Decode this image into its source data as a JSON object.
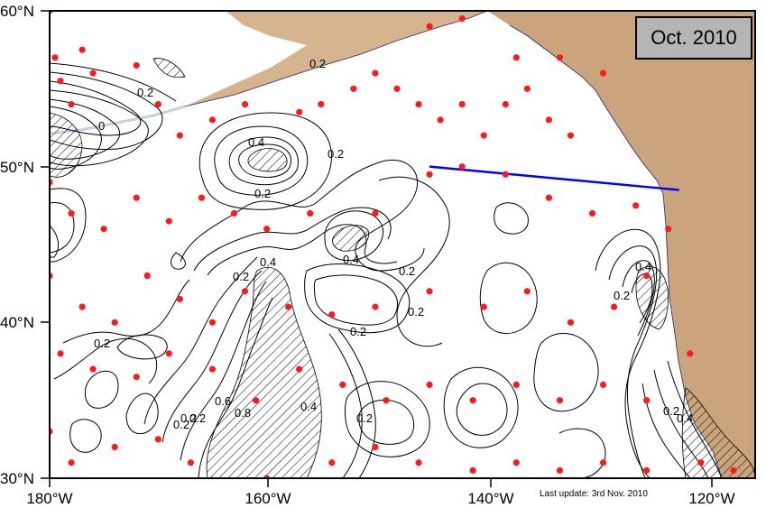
{
  "title_badge": "Oct. 2010",
  "footer": {
    "last_update": "Last update: 3rd Nov. 2010"
  },
  "axes": {
    "lat_labels": [
      "60°N",
      "50°N",
      "40°N",
      "30°N"
    ],
    "lon_labels": [
      "180°W",
      "160°W",
      "140°W",
      "120°W"
    ]
  },
  "contour_labels": [
    "0.2",
    "0.2",
    "0",
    "0.4",
    "0.2",
    "0.2",
    "0.2",
    "0.4",
    "0.4",
    "0.2",
    "0.2",
    "0.2",
    "0.2",
    "0.2",
    "0.2",
    "0.6",
    "0.8",
    "0.4",
    "0.2",
    "0.2",
    "0.4",
    "0.2",
    "0.2",
    "0.4"
  ],
  "colors": {
    "float_marker": "#ff1a1a",
    "section_line": "#0000ff",
    "land": "#c9a47c",
    "contour": "#000000"
  },
  "map_data": {
    "region": {
      "lon": [
        -180,
        -115
      ],
      "lat": [
        30,
        60
      ]
    },
    "section_line": {
      "start": [
        -145,
        50
      ],
      "end": [
        -122,
        48.5
      ]
    },
    "float_positions": [
      [
        -180,
        60
      ],
      [
        -179.5,
        57
      ],
      [
        -179,
        55.5
      ],
      [
        -178,
        54
      ],
      [
        -177,
        57.5
      ],
      [
        -176,
        56
      ],
      [
        -172,
        56.5
      ],
      [
        -170,
        54
      ],
      [
        -168,
        52
      ],
      [
        -165,
        53
      ],
      [
        -162,
        54
      ],
      [
        -157,
        53.5
      ],
      [
        -155,
        54
      ],
      [
        -152,
        55
      ],
      [
        -150,
        56
      ],
      [
        -148,
        55
      ],
      [
        -146,
        54
      ],
      [
        -144,
        53
      ],
      [
        -142,
        54
      ],
      [
        -140,
        52
      ],
      [
        -138,
        54
      ],
      [
        -136,
        55
      ],
      [
        -134,
        53
      ],
      [
        -132,
        52
      ],
      [
        -145,
        59
      ],
      [
        -142,
        59.5
      ],
      [
        -137,
        57
      ],
      [
        -133,
        57
      ],
      [
        -129,
        56
      ],
      [
        -180,
        49
      ],
      [
        -178,
        47
      ],
      [
        -175,
        46
      ],
      [
        -172,
        48
      ],
      [
        -169,
        46.5
      ],
      [
        -166,
        48
      ],
      [
        -163,
        47
      ],
      [
        -160,
        46
      ],
      [
        -156,
        47
      ],
      [
        -150,
        47
      ],
      [
        -145,
        49.5
      ],
      [
        -142,
        50
      ],
      [
        -138,
        49.5
      ],
      [
        -134,
        48
      ],
      [
        -130,
        47
      ],
      [
        -126,
        47.5
      ],
      [
        -123,
        46
      ],
      [
        -180,
        43
      ],
      [
        -177,
        41
      ],
      [
        -174,
        40
      ],
      [
        -171,
        43
      ],
      [
        -168,
        41.5
      ],
      [
        -165,
        40
      ],
      [
        -162,
        42
      ],
      [
        -158,
        41
      ],
      [
        -154,
        40.5
      ],
      [
        -150,
        41
      ],
      [
        -145,
        42
      ],
      [
        -140,
        41
      ],
      [
        -136,
        42
      ],
      [
        -132,
        40
      ],
      [
        -128,
        41
      ],
      [
        -125,
        43
      ],
      [
        -179,
        38
      ],
      [
        -176,
        37
      ],
      [
        -172,
        36.5
      ],
      [
        -169,
        38
      ],
      [
        -165,
        37
      ],
      [
        -161,
        35
      ],
      [
        -157,
        37
      ],
      [
        -153,
        36
      ],
      [
        -149,
        35
      ],
      [
        -145,
        36
      ],
      [
        -141,
        35
      ],
      [
        -137,
        36
      ],
      [
        -133,
        35
      ],
      [
        -129,
        36
      ],
      [
        -125,
        35
      ],
      [
        -121,
        38
      ],
      [
        -180,
        33
      ],
      [
        -178,
        31
      ],
      [
        -174,
        32
      ],
      [
        -170,
        32.5
      ],
      [
        -167,
        31
      ],
      [
        -160,
        30
      ],
      [
        -154,
        31
      ],
      [
        -150,
        32
      ],
      [
        -146,
        31
      ],
      [
        -141,
        30.5
      ],
      [
        -137,
        31
      ],
      [
        -133,
        30.5
      ],
      [
        -129,
        31
      ],
      [
        -125,
        30.5
      ],
      [
        -120,
        31
      ],
      [
        -117,
        30.5
      ]
    ]
  }
}
